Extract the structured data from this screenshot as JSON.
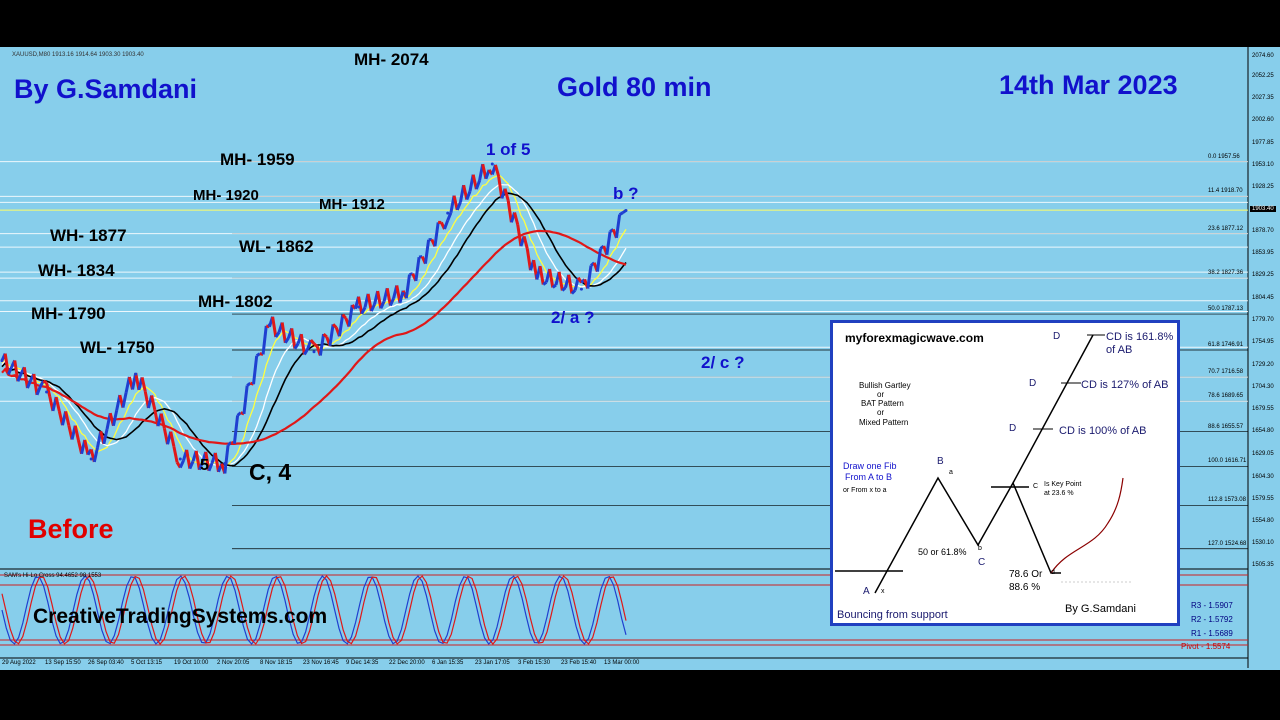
{
  "header": {
    "author": "By G.Samdani",
    "instrument": "Gold 80 min",
    "date": "14th Mar 2023",
    "top_level": "MH- 2074",
    "symbol_info": "XAUUSD,M80 1913.16 1914.64 1903.30 1903.40"
  },
  "levels": {
    "mh1959": "MH- 1959",
    "mh1920": "MH- 1920",
    "mh1912": "MH- 1912",
    "wh1877": "WH- 1877",
    "wl1862": "WL- 1862",
    "wh1834": "WH- 1834",
    "mh1802": "MH- 1802",
    "mh1790": "MH- 1790",
    "wl1750": "WL- 1750"
  },
  "waves": {
    "w1of5": "1 of 5",
    "wb": "b ?",
    "w2a": "2/ a ?",
    "w2c": "2/ c ?",
    "w5": "5",
    "wc4": "C, 4"
  },
  "status": {
    "before": "Before",
    "website": "CreativeTradingSystems.com",
    "oscillator": "SAM's Hi-Lo Cross 94.4652 98.1553"
  },
  "price_axis": [
    "2074.60",
    "2052.25",
    "2027.35",
    "2002.60",
    "1977.85",
    "1953.10",
    "1928.25",
    "1903.40",
    "1878.70",
    "1853.95",
    "1829.25",
    "1804.45",
    "1779.70",
    "1754.95",
    "1729.20",
    "1704.30",
    "1679.55",
    "1654.80",
    "1629.05",
    "1604.30",
    "1579.55",
    "1554.80",
    "1530.10",
    "1505.35"
  ],
  "current_price": "1903.40",
  "fib_levels": [
    {
      "label": "0.0 1957.56",
      "value": 1957.56
    },
    {
      "label": "11.4 1918.70",
      "value": 1918.7
    },
    {
      "label": "23.6 1877.12",
      "value": 1877.12
    },
    {
      "label": "38.2 1827.36",
      "value": 1827.36
    },
    {
      "label": "50.0 1787.13",
      "value": 1787.13
    },
    {
      "label": "61.8 1746.91",
      "value": 1746.91
    },
    {
      "label": "70.7 1716.58",
      "value": 1716.58
    },
    {
      "label": "78.6 1689.65",
      "value": 1689.65
    },
    {
      "label": "88.6 1655.57",
      "value": 1655.57
    },
    {
      "label": "100.0 1616.71",
      "value": 1616.71
    },
    {
      "label": "112.8 1573.08",
      "value": 1573.08
    },
    {
      "label": "127.0 1524.68",
      "value": 1524.68
    }
  ],
  "dates": [
    "29 Aug 2022",
    "13 Sep 15:50",
    "26 Sep 03:40",
    "5 Oct 13:15",
    "19 Oct 10:00",
    "2 Nov 20:05",
    "8 Nov 18:15",
    "23 Nov 16:45",
    "9 Dec 14:35",
    "22 Dec 20:00",
    "6 Jan 15:35",
    "23 Jan 17:05",
    "3 Feb 15:30",
    "23 Feb 15:40",
    "13 Mar 00:00"
  ],
  "pivots": [
    {
      "label": "R3 - 1.5907",
      "color": "#000080"
    },
    {
      "label": "R2 - 1.5792",
      "color": "#000080"
    },
    {
      "label": "R1 - 1.5689",
      "color": "#000080"
    },
    {
      "label": "Pivot - 1.5574",
      "color": "#cc0000"
    }
  ],
  "pattern_box": {
    "site": "myforexmagicwave.com",
    "type_1": "Bullish Gartley",
    "or_1": "or",
    "type_2": "BAT Pattern",
    "or_2": "or",
    "type_3": "Mixed Pattern",
    "draw_fib": "Draw one Fib",
    "from_ab": "From A to B",
    "from_xa": "or From x to a",
    "cd161": "CD is 161.8%",
    "cd161b": "of AB",
    "cd127": "CD is 127% of AB",
    "cd100": "CD is 100% of AB",
    "key_point": "Is Key Point",
    "key_point2": "at 23.6 %",
    "retr": "50 or 61.8%",
    "retr2a": "78.6 Or",
    "retr2b": "88.6 %",
    "bouncing": "Bouncing from support",
    "author": "By G.Samdani",
    "pA": "A",
    "px": "x",
    "pB": "B",
    "pa": "a",
    "pb": "b",
    "pC": "C",
    "pc": "C",
    "pd": "d",
    "pD1": "D",
    "pD2": "D",
    "pD3": "D"
  },
  "chart_data": {
    "type": "line",
    "title": "Gold 80 min",
    "xlabel": "",
    "ylabel": "",
    "ylim": [
      1505.35,
      2074.6
    ],
    "x": [
      "29 Aug 2022",
      "13 Sep 15:50",
      "26 Sep 03:40",
      "5 Oct 13:15",
      "19 Oct 10:00",
      "2 Nov 20:05",
      "8 Nov 18:15",
      "23 Nov 16:45",
      "9 Dec 14:35",
      "22 Dec 20:00",
      "6 Jan 15:35",
      "23 Jan 17:05",
      "3 Feb 15:30",
      "23 Feb 15:40",
      "13 Mar 00:00"
    ],
    "series": [
      {
        "name": "",
        "color": "#1f3fd0",
        "values": [
          1735,
          1700,
          1625,
          1720,
          1625,
          1620,
          1775,
          1745,
          1795,
          1810,
          1900,
          1955,
          1830,
          1815,
          1903
        ]
      }
    ]
  }
}
